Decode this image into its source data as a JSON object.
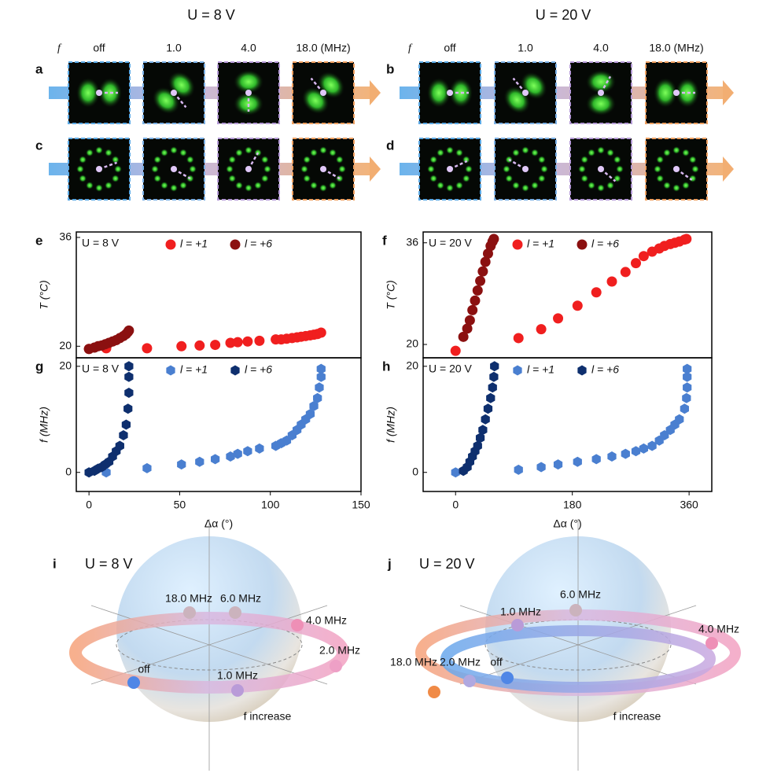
{
  "figure": {
    "columns": [
      {
        "title": "U = 8 V",
        "freq_symbol": "f",
        "freq_labels": [
          "off",
          "1.0",
          "4.0",
          "18.0 (MHz)"
        ],
        "panel_labels": [
          "a",
          "c"
        ]
      },
      {
        "title": "U = 20 V",
        "freq_symbol": "f",
        "freq_labels": [
          "off",
          "1.0",
          "4.0",
          "18.0 (MHz)"
        ],
        "panel_labels": [
          "b",
          "d"
        ]
      }
    ]
  },
  "chart_data": [
    {
      "type": "scatter",
      "panel_label": "e",
      "annotation": "U = 8 V",
      "ylabel": "T (°C)",
      "marker": "circle",
      "xlim": [
        -7,
        150
      ],
      "ylim": [
        18.3,
        36.8
      ],
      "yticks": [
        20,
        36
      ],
      "series": [
        {
          "name": "l = +1",
          "color": "#f01f1f",
          "x": [
            0,
            9.5,
            32,
            51,
            61,
            69.6,
            78,
            82,
            87.5,
            94,
            103,
            106,
            109,
            112,
            114.7,
            117,
            119.5,
            122,
            124,
            126,
            128
          ],
          "values": [
            19.6,
            19.7,
            19.7,
            20,
            20.1,
            20.2,
            20.5,
            20.6,
            20.7,
            20.8,
            21,
            21,
            21.1,
            21.2,
            21.3,
            21.4,
            21.5,
            21.6,
            21.7,
            21.8,
            22
          ]
        },
        {
          "name": "l = +6",
          "color": "#8b1010",
          "x": [
            0,
            3,
            5,
            7,
            9,
            11,
            13,
            15,
            17,
            19,
            20.5,
            21.5,
            22
          ],
          "values": [
            19.6,
            19.8,
            20,
            20.1,
            20.3,
            20.5,
            20.7,
            20.9,
            21.2,
            21.5,
            21.8,
            22.1,
            22.3
          ]
        }
      ]
    },
    {
      "type": "scatter",
      "panel_label": "f",
      "annotation": "U = 20 V",
      "ylabel": "T (°C)",
      "marker": "circle",
      "xlim": [
        -50,
        395
      ],
      "ylim": [
        17.9,
        37.7
      ],
      "yticks": [
        20,
        36
      ],
      "series": [
        {
          "name": "l = +1",
          "color": "#f01f1f",
          "x": [
            0,
            97,
            132,
            158,
            188,
            217,
            241,
            262,
            278,
            290,
            303,
            314,
            322,
            331,
            338,
            345,
            353,
            356
          ],
          "values": [
            19,
            21,
            22.4,
            24.1,
            26.1,
            28.2,
            29.9,
            31.4,
            32.8,
            33.9,
            34.6,
            35.1,
            35.5,
            35.8,
            36,
            36.2,
            36.5,
            36.6
          ]
        },
        {
          "name": "l = +6",
          "color": "#8b1010",
          "x": [
            12,
            18,
            22,
            26,
            30,
            34,
            38,
            42,
            46,
            50,
            54,
            57,
            59
          ],
          "values": [
            21.2,
            22.5,
            23.8,
            25.4,
            26.9,
            28.5,
            30,
            31.5,
            33,
            34.3,
            35.5,
            36.2,
            36.6
          ]
        }
      ]
    },
    {
      "type": "scatter",
      "panel_label": "g",
      "annotation": "U = 8 V",
      "ylabel": "f (MHz)",
      "xlabel": "Δα (°)",
      "marker": "hexagon",
      "xlim": [
        -7,
        150
      ],
      "xticks": [
        0,
        50,
        100,
        150
      ],
      "ylim": [
        -3.6,
        21.6
      ],
      "yticks": [
        0,
        20
      ],
      "series": [
        {
          "name": "l = +1",
          "color": "#4a7fd0",
          "x": [
            0,
            9.5,
            32,
            51,
            61,
            69.6,
            78,
            82,
            87.5,
            94,
            103,
            106,
            109,
            112,
            114.7,
            117,
            119.5,
            122,
            124,
            126,
            127,
            128,
            128
          ],
          "values": [
            0,
            0,
            0.8,
            1.5,
            2,
            2.5,
            3,
            3.5,
            4,
            4.5,
            5,
            5.5,
            6,
            7,
            8,
            9,
            10,
            11,
            12.5,
            14,
            16,
            18,
            19.5
          ]
        },
        {
          "name": "l = +6",
          "color": "#0e2f6e",
          "x": [
            0,
            3,
            5,
            7,
            9,
            11,
            13,
            15,
            17,
            19,
            20.5,
            21.5,
            22,
            22,
            22
          ],
          "values": [
            0,
            0.3,
            0.7,
            1,
            1.5,
            2,
            3,
            4,
            5,
            7,
            9,
            12,
            15,
            18,
            20
          ]
        }
      ]
    },
    {
      "type": "scatter",
      "panel_label": "h",
      "annotation": "U = 20 V",
      "ylabel": "f (MHz)",
      "xlabel": "Δα (°)",
      "marker": "hexagon",
      "xlim": [
        -50,
        395
      ],
      "xticks": [
        0,
        180,
        360
      ],
      "ylim": [
        -3.6,
        21.6
      ],
      "yticks": [
        0,
        20
      ],
      "series": [
        {
          "name": "l = +1",
          "color": "#4a7fd0",
          "x": [
            0,
            97,
            132,
            158,
            188,
            217,
            241,
            262,
            278,
            290,
            303,
            314,
            322,
            331,
            338,
            345,
            353,
            356,
            357,
            357,
            357
          ],
          "values": [
            0,
            0.5,
            1,
            1.5,
            2,
            2.5,
            3,
            3.5,
            4,
            4.5,
            5,
            6,
            7,
            8,
            9,
            10,
            12,
            14,
            16,
            18,
            19.5
          ]
        },
        {
          "name": "l = +6",
          "color": "#0e2f6e",
          "x": [
            12,
            18,
            22,
            26,
            30,
            34,
            38,
            42,
            46,
            50,
            54,
            57,
            59,
            60
          ],
          "values": [
            0.3,
            1,
            2,
            3,
            4,
            5,
            6.5,
            8,
            10,
            12,
            14,
            16,
            18,
            20
          ]
        }
      ]
    }
  ],
  "spheres": [
    {
      "panel_label": "i",
      "title": "U = 8 V",
      "caption": "f increase",
      "points": [
        {
          "label": "18.0 MHz",
          "color": "#cbb3bd"
        },
        {
          "label": "6.0 MHz",
          "color": "#cbb3bd"
        },
        {
          "label": "4.0 MHz",
          "color": "#ee8fb6"
        },
        {
          "label": "2.0 MHz",
          "color": "#eea0c6"
        },
        {
          "label": "1.0 MHz",
          "color": "#b99bd8"
        },
        {
          "label": "off",
          "color": "#4f86e6"
        }
      ]
    },
    {
      "panel_label": "j",
      "title": "U = 20 V",
      "caption": "f increase",
      "points": [
        {
          "label": "6.0 MHz",
          "color": "#cbb3bd"
        },
        {
          "label": "1.0 MHz",
          "color": "#b99bd8"
        },
        {
          "label": "4.0 MHz",
          "color": "#ee8fb6"
        },
        {
          "label": "18.0 MHz",
          "color": "#f08a46"
        },
        {
          "label": "2.0 MHz",
          "color": "#b0a8e0"
        },
        {
          "label": "off",
          "color": "#4f86e6"
        }
      ]
    }
  ]
}
